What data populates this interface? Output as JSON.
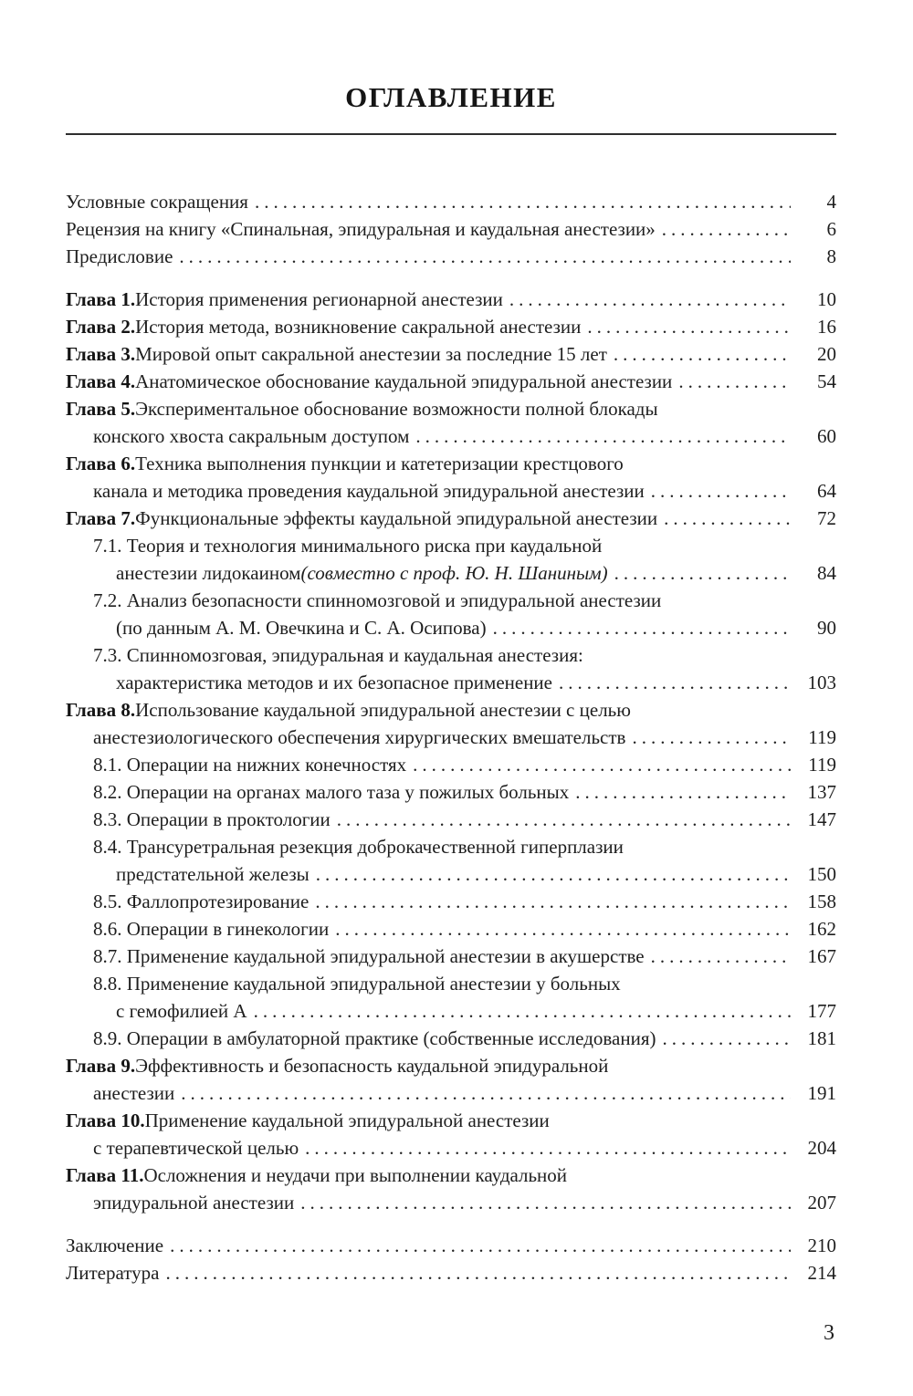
{
  "toc": {
    "title": "ОГЛАВЛЕНИЕ",
    "entries": [
      {
        "page": "4",
        "lines": [
          {
            "indent": 0,
            "segments": [
              {
                "t": "Условные сокращения"
              }
            ]
          }
        ]
      },
      {
        "page": "6",
        "lines": [
          {
            "indent": 0,
            "segments": [
              {
                "t": "Рецензия на книгу «Спинальная, эпидуральная и каудальная анестезии»"
              }
            ]
          }
        ]
      },
      {
        "page": "8",
        "lines": [
          {
            "indent": 0,
            "segments": [
              {
                "t": "Предисловие"
              }
            ]
          }
        ]
      },
      {
        "gap_before": true,
        "page": "10",
        "lines": [
          {
            "indent": 0,
            "segments": [
              {
                "t": "Глава 1.",
                "b": true
              },
              {
                "t": " История применения регионарной анестезии"
              }
            ]
          }
        ]
      },
      {
        "page": "16",
        "lines": [
          {
            "indent": 0,
            "segments": [
              {
                "t": "Глава 2.",
                "b": true
              },
              {
                "t": " История метода, возникновение сакральной анестезии"
              }
            ]
          }
        ]
      },
      {
        "page": "20",
        "lines": [
          {
            "indent": 0,
            "segments": [
              {
                "t": "Глава 3.",
                "b": true
              },
              {
                "t": " Мировой опыт сакральной анестезии за последние 15 лет"
              }
            ]
          }
        ]
      },
      {
        "page": "54",
        "lines": [
          {
            "indent": 0,
            "segments": [
              {
                "t": "Глава 4.",
                "b": true
              },
              {
                "t": " Анатомическое обоснование каудальной эпидуральной анестезии"
              }
            ]
          }
        ]
      },
      {
        "page": "60",
        "lines": [
          {
            "indent": 0,
            "segments": [
              {
                "t": "Глава 5.",
                "b": true
              },
              {
                "t": " Экспериментальное обоснование возможности полной блокады"
              }
            ]
          },
          {
            "indent": 1,
            "segments": [
              {
                "t": "конского хвоста сакральным доступом"
              }
            ]
          }
        ]
      },
      {
        "page": "64",
        "lines": [
          {
            "indent": 0,
            "segments": [
              {
                "t": "Глава 6.",
                "b": true
              },
              {
                "t": " Техника выполнения пункции и катетеризации крестцового"
              }
            ]
          },
          {
            "indent": 1,
            "segments": [
              {
                "t": "канала и методика проведения каудальной эпидуральной анестезии"
              }
            ]
          }
        ]
      },
      {
        "page": "72",
        "lines": [
          {
            "indent": 0,
            "segments": [
              {
                "t": "Глава 7.",
                "b": true
              },
              {
                "t": " Функциональные эффекты каудальной эпидуральной анестезии"
              }
            ]
          }
        ]
      },
      {
        "page": "84",
        "lines": [
          {
            "indent": 1,
            "segments": [
              {
                "t": "7.1. Теория и технология минимального риска при каудальной"
              }
            ]
          },
          {
            "indent": 2,
            "segments": [
              {
                "t": "анестезии лидокаином "
              },
              {
                "t": "(совместно с проф. Ю. Н. Шаниным)",
                "i": true
              }
            ]
          }
        ]
      },
      {
        "page": "90",
        "lines": [
          {
            "indent": 1,
            "segments": [
              {
                "t": "7.2. Анализ безопасности спинномозговой и эпидуральной анестезии"
              }
            ]
          },
          {
            "indent": 2,
            "segments": [
              {
                "t": "(по данным А. М. Овечкина и С. А. Осипова)"
              }
            ]
          }
        ]
      },
      {
        "page": "103",
        "lines": [
          {
            "indent": 1,
            "segments": [
              {
                "t": "7.3. Спинномозговая, эпидуральная и каудальная анестезия:"
              }
            ]
          },
          {
            "indent": 2,
            "segments": [
              {
                "t": "характеристика методов и их безопасное применение"
              }
            ]
          }
        ]
      },
      {
        "page": "119",
        "lines": [
          {
            "indent": 0,
            "segments": [
              {
                "t": "Глава 8.",
                "b": true
              },
              {
                "t": " Использование каудальной эпидуральной анестезии с целью"
              }
            ]
          },
          {
            "indent": 1,
            "segments": [
              {
                "t": "анестезиологического обеспечения хирургических вмешательств"
              }
            ]
          }
        ]
      },
      {
        "page": "119",
        "lines": [
          {
            "indent": 1,
            "segments": [
              {
                "t": "8.1. Операции на нижних конечностях"
              }
            ]
          }
        ]
      },
      {
        "page": "137",
        "lines": [
          {
            "indent": 1,
            "segments": [
              {
                "t": "8.2. Операции на органах малого таза у пожилых больных"
              }
            ]
          }
        ]
      },
      {
        "page": "147",
        "lines": [
          {
            "indent": 1,
            "segments": [
              {
                "t": "8.3. Операции в проктологии"
              }
            ]
          }
        ]
      },
      {
        "page": "150",
        "lines": [
          {
            "indent": 1,
            "segments": [
              {
                "t": "8.4. Трансуретральная резекция доброкачественной гиперплазии"
              }
            ]
          },
          {
            "indent": 2,
            "segments": [
              {
                "t": "предстательной железы"
              }
            ]
          }
        ]
      },
      {
        "page": "158",
        "lines": [
          {
            "indent": 1,
            "segments": [
              {
                "t": "8.5. Фаллопротезирование"
              }
            ]
          }
        ]
      },
      {
        "page": "162",
        "lines": [
          {
            "indent": 1,
            "segments": [
              {
                "t": "8.6. Операции в гинекологии"
              }
            ]
          }
        ]
      },
      {
        "page": "167",
        "lines": [
          {
            "indent": 1,
            "segments": [
              {
                "t": "8.7. Применение каудальной эпидуральной анестезии в акушерстве"
              }
            ]
          }
        ]
      },
      {
        "page": "177",
        "lines": [
          {
            "indent": 1,
            "segments": [
              {
                "t": "8.8. Применение каудальной эпидуральной анестезии у больных"
              }
            ]
          },
          {
            "indent": 2,
            "segments": [
              {
                "t": "с гемофилией А"
              }
            ]
          }
        ]
      },
      {
        "page": "181",
        "lines": [
          {
            "indent": 1,
            "segments": [
              {
                "t": "8.9. Операции в амбулаторной практике (собственные исследования)"
              }
            ]
          }
        ]
      },
      {
        "page": "191",
        "lines": [
          {
            "indent": 0,
            "segments": [
              {
                "t": "Глава 9.",
                "b": true
              },
              {
                "t": " Эффективность и безопасность каудальной эпидуральной"
              }
            ]
          },
          {
            "indent": 1,
            "segments": [
              {
                "t": "анестезии"
              }
            ]
          }
        ]
      },
      {
        "page": "204",
        "lines": [
          {
            "indent": 0,
            "segments": [
              {
                "t": "Глава 10.",
                "b": true
              },
              {
                "t": " Применение каудальной эпидуральной анестезии"
              }
            ]
          },
          {
            "indent": 1,
            "segments": [
              {
                "t": "с терапевтической целью"
              }
            ]
          }
        ]
      },
      {
        "page": "207",
        "lines": [
          {
            "indent": 0,
            "segments": [
              {
                "t": "Глава 11.",
                "b": true
              },
              {
                "t": " Осложнения и неудачи при выполнении каудальной"
              }
            ]
          },
          {
            "indent": 1,
            "segments": [
              {
                "t": "эпидуральной анестезии"
              }
            ]
          }
        ]
      },
      {
        "gap_before": true,
        "page": "210",
        "lines": [
          {
            "indent": 0,
            "segments": [
              {
                "t": "Заключение"
              }
            ]
          }
        ]
      },
      {
        "page": "214",
        "lines": [
          {
            "indent": 0,
            "segments": [
              {
                "t": "Литература"
              }
            ]
          }
        ]
      }
    ]
  },
  "footer": {
    "page_number": "3"
  }
}
